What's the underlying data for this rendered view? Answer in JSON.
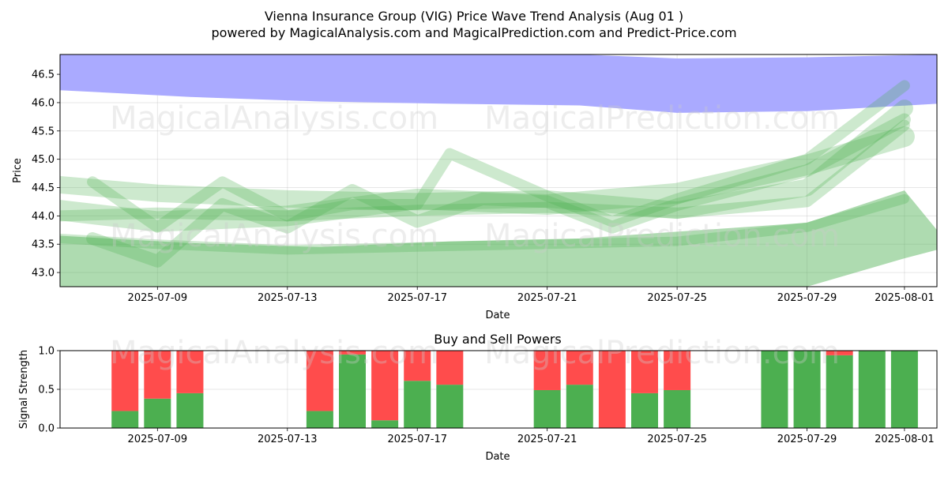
{
  "title": "Vienna Insurance Group (VIG) Price Wave Trend Analysis (Aug 01 )",
  "subtitle": "powered by MagicalAnalysis.com and MagicalPrediction.com and Predict-Price.com",
  "watermarks": [
    "MagicalAnalysis.com",
    "MagicalPrediction.com"
  ],
  "colors": {
    "upper_band": "#aaaaff",
    "wave": "#4caf50",
    "buy": "#4caf50",
    "sell": "#ff4c4c"
  },
  "chart_data": [
    {
      "type": "area",
      "xlabel": "Date",
      "ylabel": "Price",
      "xlim": [
        "2025-07-06",
        "2025-08-02"
      ],
      "ylim": [
        42.75,
        46.85
      ],
      "x_ticks": [
        "2025-07-09",
        "2025-07-13",
        "2025-07-17",
        "2025-07-21",
        "2025-07-25",
        "2025-07-29",
        "2025-08-01"
      ],
      "y_ticks": [
        "43.0",
        "43.5",
        "44.0",
        "44.5",
        "45.0",
        "45.5",
        "46.0",
        "46.5"
      ],
      "grid": true,
      "upper_band": {
        "x": [
          "2025-07-06",
          "2025-07-10",
          "2025-07-14",
          "2025-07-18",
          "2025-07-22",
          "2025-07-25",
          "2025-07-29",
          "2025-08-02"
        ],
        "upper": [
          46.85,
          46.85,
          46.85,
          46.85,
          46.85,
          46.78,
          46.8,
          46.85
        ],
        "lower": [
          46.22,
          46.1,
          46.02,
          45.98,
          45.95,
          45.82,
          45.85,
          45.98
        ]
      },
      "lower_band": {
        "x": [
          "2025-07-06",
          "2025-07-10",
          "2025-07-14",
          "2025-07-18",
          "2025-07-22",
          "2025-07-25",
          "2025-07-29",
          "2025-08-01",
          "2025-08-02"
        ],
        "upper": [
          43.65,
          43.52,
          43.45,
          43.55,
          43.6,
          43.72,
          43.88,
          44.45,
          43.75
        ],
        "lower": [
          42.75,
          42.75,
          42.75,
          42.75,
          42.75,
          42.75,
          42.75,
          43.25,
          43.4
        ]
      },
      "wave_lines": [
        {
          "x": [
            "2025-07-06",
            "2025-07-09",
            "2025-07-13",
            "2025-07-17",
            "2025-07-21",
            "2025-07-25",
            "2025-07-29",
            "2025-08-01"
          ],
          "y": [
            44.55,
            44.4,
            44.3,
            44.25,
            44.3,
            44.1,
            44.5,
            45.9
          ]
        },
        {
          "x": [
            "2025-07-06",
            "2025-07-09",
            "2025-07-13",
            "2025-07-17",
            "2025-07-21",
            "2025-07-25",
            "2025-07-29",
            "2025-08-01"
          ],
          "y": [
            44.0,
            44.05,
            44.0,
            44.1,
            44.15,
            44.05,
            44.25,
            45.6
          ]
        },
        {
          "x": [
            "2025-07-07",
            "2025-07-09",
            "2025-07-11",
            "2025-07-13",
            "2025-07-15",
            "2025-07-17",
            "2025-07-19",
            "2025-07-21",
            "2025-07-23",
            "2025-07-25",
            "2025-07-29",
            "2025-08-01"
          ],
          "y": [
            43.6,
            43.2,
            44.2,
            43.8,
            44.45,
            43.9,
            44.3,
            44.25,
            43.8,
            44.2,
            44.8,
            45.7
          ]
        },
        {
          "x": [
            "2025-07-07",
            "2025-07-09",
            "2025-07-11",
            "2025-07-13",
            "2025-07-15",
            "2025-07-17",
            "2025-07-18",
            "2025-07-21",
            "2025-07-23",
            "2025-07-25",
            "2025-07-29",
            "2025-08-01"
          ],
          "y": [
            44.6,
            43.8,
            44.6,
            44.0,
            44.2,
            44.2,
            45.1,
            44.35,
            43.9,
            44.3,
            45.0,
            46.3
          ]
        },
        {
          "x": [
            "2025-07-06",
            "2025-07-09",
            "2025-07-13",
            "2025-07-17",
            "2025-07-21",
            "2025-07-25",
            "2025-07-29",
            "2025-08-01"
          ],
          "y": [
            43.6,
            43.5,
            43.4,
            43.45,
            43.5,
            43.55,
            43.8,
            44.3
          ]
        },
        {
          "x": [
            "2025-07-06",
            "2025-07-09",
            "2025-07-13",
            "2025-07-17",
            "2025-07-21",
            "2025-07-25",
            "2025-07-29",
            "2025-08-01"
          ],
          "y": [
            44.1,
            43.9,
            44.0,
            44.3,
            44.2,
            44.4,
            44.9,
            45.4
          ]
        }
      ]
    },
    {
      "type": "bar",
      "stacked": true,
      "title": "Buy and Sell Powers",
      "xlabel": "Date",
      "ylabel": "Signal Strength",
      "xlim": [
        "2025-07-06",
        "2025-08-02"
      ],
      "ylim": [
        0,
        1.0
      ],
      "x_ticks": [
        "2025-07-09",
        "2025-07-13",
        "2025-07-17",
        "2025-07-21",
        "2025-07-25",
        "2025-07-29",
        "2025-08-01"
      ],
      "y_ticks": [
        "0.0",
        "0.5",
        "1.0"
      ],
      "categories": [
        "2025-07-08",
        "2025-07-09",
        "2025-07-10",
        "2025-07-14",
        "2025-07-15",
        "2025-07-16",
        "2025-07-17",
        "2025-07-18",
        "2025-07-21",
        "2025-07-22",
        "2025-07-23",
        "2025-07-24",
        "2025-07-25",
        "2025-07-28",
        "2025-07-29",
        "2025-07-30",
        "2025-07-31",
        "2025-08-01"
      ],
      "series": [
        {
          "name": "Buy",
          "values": [
            0.22,
            0.38,
            0.45,
            0.22,
            0.95,
            0.1,
            0.61,
            0.56,
            0.49,
            0.56,
            0.0,
            0.45,
            0.49,
            1.0,
            1.0,
            0.94,
            1.0,
            1.0
          ]
        },
        {
          "name": "Sell",
          "values": [
            0.78,
            0.62,
            0.55,
            0.78,
            0.05,
            0.9,
            0.39,
            0.44,
            0.51,
            0.44,
            1.0,
            0.55,
            0.51,
            0.0,
            0.0,
            0.06,
            0.0,
            0.0
          ]
        }
      ]
    }
  ]
}
